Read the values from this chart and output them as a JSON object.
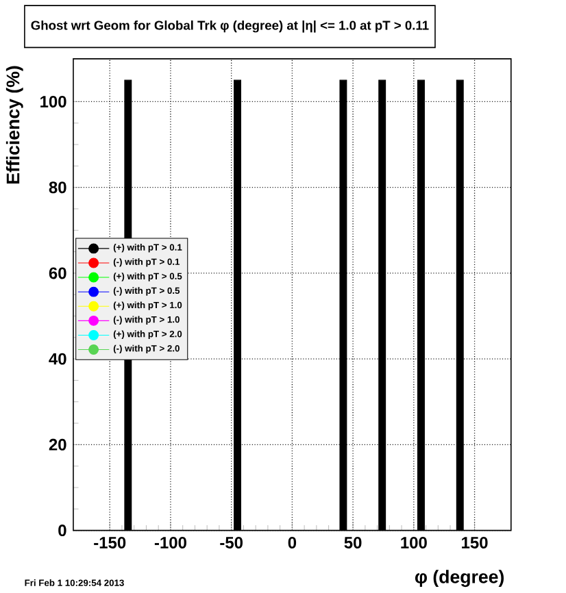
{
  "chart_data": {
    "type": "bar",
    "title": "Ghost wrt Geom for Global Trk φ (degree) at |η| <= 1.0 at pT > 0.11",
    "xlabel": "φ (degree)",
    "ylabel": "Efficiency (%)",
    "x": [
      -135,
      -45,
      42,
      74,
      106,
      138
    ],
    "series": [
      {
        "name": "(+) with pT > 0.1",
        "color": "#000000",
        "values": [
          105,
          105,
          105,
          105,
          105,
          105
        ]
      },
      {
        "name": "(-) with pT > 0.1",
        "color": "#ff0000",
        "values": [
          null,
          null,
          null,
          null,
          null,
          null
        ]
      },
      {
        "name": "(+) with pT > 0.5",
        "color": "#00ff00",
        "values": [
          null,
          null,
          null,
          null,
          null,
          null
        ]
      },
      {
        "name": "(-) with pT > 0.5",
        "color": "#0000ff",
        "values": [
          null,
          null,
          null,
          null,
          null,
          null
        ]
      },
      {
        "name": "(+) with pT > 1.0",
        "color": "#ffff00",
        "values": [
          null,
          null,
          null,
          null,
          null,
          null
        ]
      },
      {
        "name": "(-) with pT > 1.0",
        "color": "#ff00ff",
        "values": [
          null,
          null,
          null,
          null,
          null,
          null
        ]
      },
      {
        "name": "(+) with pT > 2.0",
        "color": "#00ffff",
        "values": [
          null,
          null,
          null,
          null,
          null,
          null
        ]
      },
      {
        "name": "(-) with pT > 2.0",
        "color": "#59d454",
        "values": [
          null,
          null,
          null,
          null,
          null,
          null
        ]
      }
    ],
    "xlim": [
      -180,
      180
    ],
    "ylim": [
      0,
      110
    ],
    "xticks": [
      -150,
      -100,
      -50,
      0,
      50,
      100,
      150
    ],
    "yticks": [
      0,
      20,
      40,
      60,
      80,
      100
    ],
    "grid": true,
    "legend": "left",
    "marker": "circle",
    "annotations": [
      "Fri Feb  1 10:29:54 2013"
    ]
  }
}
